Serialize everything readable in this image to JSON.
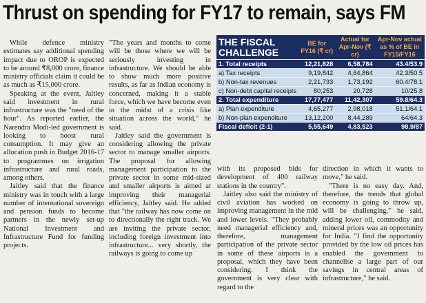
{
  "headline": "Thrust on spending for FY17 to remain, says FM",
  "columns": [
    {
      "paragraphs": [
        "While defence ministry estimates say additional spending impact due to OROP is expected to be around ₹8,000 crore, finance ministry officials claim it could be as much as ₹15,000 crore.",
        "Speaking at the event, Jaitley said investment in rural infrastructure was the \"need of the hour\". As reported earlier, the Narendra Modi-led government is looking to boost rural consumption. It may give an allocation push in Budget 2016-17 to programmes on irrigation infrastructure and rural roads, among others.",
        "Jaitley said that the finance ministry was in touch with a large number of international sovereign and pension funds to become partners in the newly set-up National Investment and Infrastructure Fund for funding projects."
      ]
    },
    {
      "paragraphs": [
        "\"The years and months to come will be those where we will be seriously investing in infrastructure. We should be able to show much more positive results, as far as Indian economy is concerned, making it a stable force, which we have become even in the midst of a crisis like situation across the world,\" he said.",
        "Jaitley said the government is considering allowing the private sector to manage smaller airports. The proposal for allowing management participation to the private sector in some mid-sized and smaller airports is aimed at improving their managerial efficiency, Jaitley said. He added that \"the railway has now come on to directionally the right track. We are inviting the private sector, including foreign investment into infrastructure... very shortly, the railways is going to come up"
      ]
    },
    {
      "paragraphs": [
        "with its proposed bids for development of 400 railway stations in the country\".",
        "Jaitley also said the ministry of civil aviation has worked on improving management in the mid and lower levels. \"They probably need managerial efficiency and, therefore, management participation of the private sector in some of these airports is a proposal, which they have been considering. I think the government is very clear with regard to the"
      ]
    },
    {
      "paragraphs": [
        "direction in which it wants to move,\" he said.",
        "\"There is no easy day. And, therefore, the trends that global economy is going to throw up, will be challenging,\" he said, adding lower oil, commodity and mineral prices was an opportunity for India. \"I find the opportunity provided by the low oil prices has enabled the government to channelise a large part of our savings in central areas of infrastructure,\" he said."
      ]
    }
  ],
  "table": {
    "title": "THE FISCAL CHALLENGE",
    "headers": [
      "BE for FY16 (₹ cr)",
      "Actual for Apr-Nov (₹ cr)",
      "Apr-Nov actual as % of BE in FY15/FY16"
    ],
    "rows": [
      [
        "1. Total receipts",
        "12,21,828",
        "6,58,784",
        "43.4/53.9"
      ],
      [
        "a) Tax receipts",
        "9,19,842",
        "4,64,864",
        "42.3/50.5"
      ],
      [
        "b) Non-tax revenues",
        "2,21,733",
        "1,73,192",
        "60.4/78.1"
      ],
      [
        "c) Non-debt capital receipts",
        "80,253",
        "20,728",
        "10/25.8"
      ],
      [
        "2. Total expenditure",
        "17,77,477",
        "11,42,307",
        "59.8/64.3"
      ],
      [
        "a) Plan expenditure",
        "4,65,277",
        "2,98,018",
        "51.1/64.1"
      ],
      [
        "b) Non-plan expenditure",
        "13,12,200",
        "8,44,289",
        "64/64.3"
      ],
      [
        "Fiscal deficit (2-1)",
        "5,55,649",
        "4,83,523",
        "98.9/87"
      ]
    ]
  }
}
